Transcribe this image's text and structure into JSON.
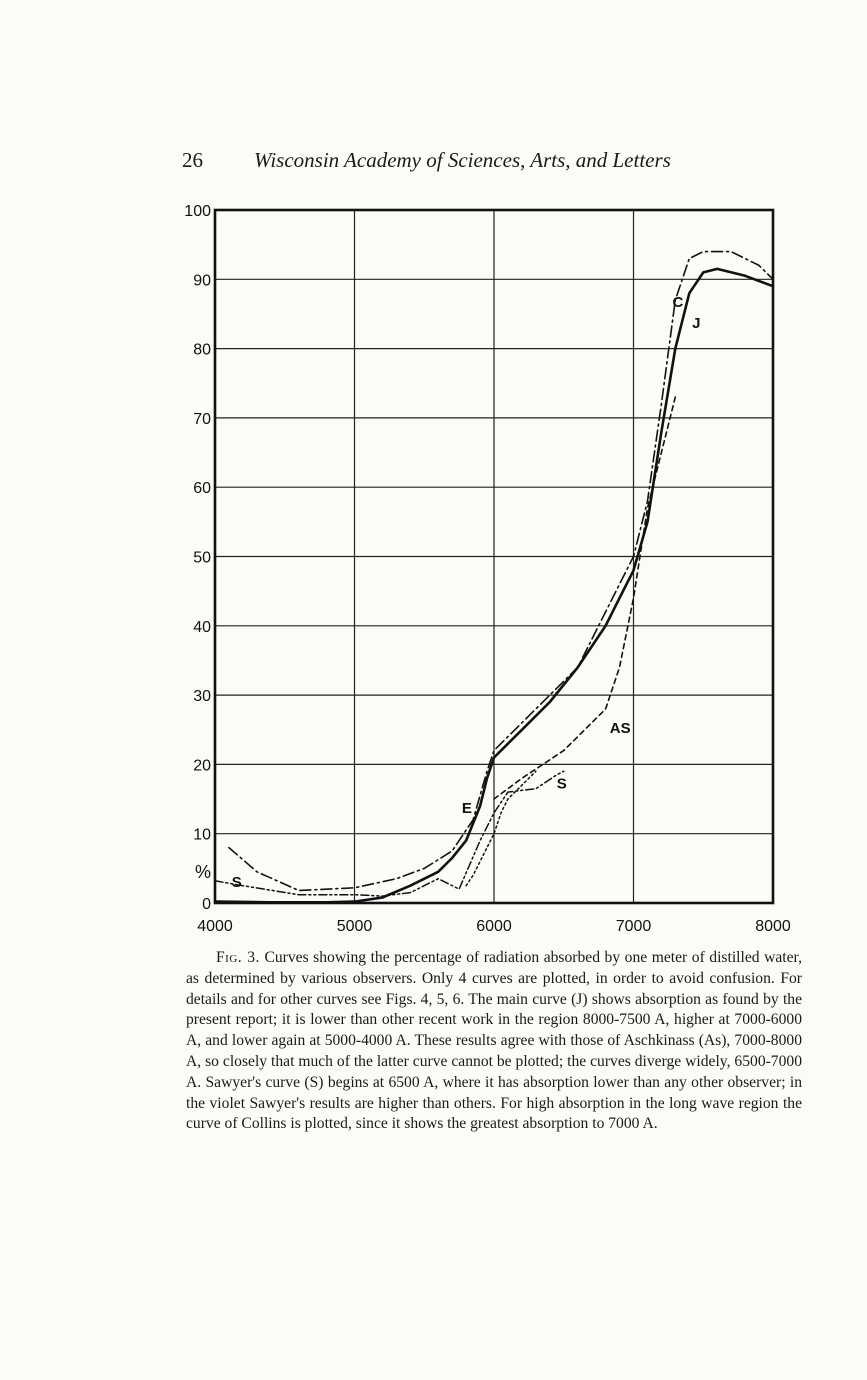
{
  "header": {
    "page_number": "26",
    "running_title": "Wisconsin Academy of Sciences, Arts, and Letters"
  },
  "caption": {
    "label": "Fig. 3.",
    "text": "Curves showing the percentage of radiation absorbed by one meter of distilled water, as determined by various observers. Only 4 curves are plotted, in order to avoid confusion. For details and for other curves see Figs. 4, 5, 6. The main curve (J) shows absorption as found by the present report; it is lower than other recent work in the region 8000-7500 A, higher at 7000-6000 A, and lower again at 5000-4000 A. These results agree with those of Aschkinass (As), 7000-8000 A, so closely that much of the latter curve cannot be plotted; the curves diverge widely, 6500-7000 A. Sawyer's curve (S) begins at 6500 A, where it has absorption lower than any other observer; in the violet Sawyer's results are higher than others. For high absorption in the long wave region the curve of Collins is plotted, since it shows the greatest absorption to 7000 A."
  },
  "chart_data": {
    "type": "line",
    "xlim": [
      4000,
      8000
    ],
    "ylim": [
      0,
      100
    ],
    "x_ticks": [
      "4000",
      "5000",
      "6000",
      "7000",
      "8000"
    ],
    "y_ticks": [
      {
        "value": 0,
        "label": "0"
      },
      {
        "value": 10,
        "label": "10"
      },
      {
        "value": 20,
        "label": "20"
      },
      {
        "value": 30,
        "label": "30"
      },
      {
        "value": 40,
        "label": "40"
      },
      {
        "value": 50,
        "label": "50"
      },
      {
        "value": 60,
        "label": "60"
      },
      {
        "value": 70,
        "label": "70"
      },
      {
        "value": 80,
        "label": "80"
      },
      {
        "value": 90,
        "label": "90"
      },
      {
        "value": 100,
        "label": "100"
      }
    ],
    "unit_label": "%",
    "grid": true,
    "series": [
      {
        "name": "J",
        "style": "solid",
        "x": [
          4000,
          4400,
          4800,
          5000,
          5200,
          5400,
          5600,
          5700,
          5800,
          5900,
          5950,
          6000,
          6200,
          6400,
          6600,
          6800,
          6900,
          7000,
          7100,
          7200,
          7300,
          7400,
          7500,
          7600,
          7800,
          8000
        ],
        "y": [
          0.2,
          0.1,
          0.1,
          0.2,
          0.8,
          2.5,
          4.5,
          6.5,
          9,
          14,
          18,
          21,
          25,
          29,
          34,
          40,
          44,
          48,
          55,
          68,
          80,
          88,
          91,
          91.5,
          90.5,
          89
        ]
      },
      {
        "name": "C",
        "style": "dash-dot",
        "x": [
          4100,
          4300,
          4600,
          5000,
          5300,
          5500,
          5700,
          5850,
          5950,
          6000,
          6200,
          6400,
          6600,
          6800,
          6900,
          7000,
          7100,
          7200,
          7300,
          7400,
          7500,
          7700,
          7900,
          8000
        ],
        "y": [
          8,
          4.5,
          1.8,
          2.2,
          3.5,
          5,
          7.5,
          12,
          19,
          22,
          26,
          30,
          34,
          42,
          46,
          50,
          58,
          72,
          87,
          93,
          94,
          94,
          92,
          90
        ]
      },
      {
        "name": "AS",
        "style": "dashed",
        "x": [
          6000,
          6200,
          6500,
          6800,
          6900,
          7000,
          7100,
          7300
        ],
        "y": [
          15,
          18,
          22,
          28,
          34,
          44,
          57,
          73
        ]
      },
      {
        "name": "S",
        "style": "dashed-dotted",
        "x": [
          4000,
          4200,
          4600,
          5000,
          5200,
          5400,
          5600,
          5750,
          5900,
          6000,
          6100,
          6300,
          6450,
          6500
        ],
        "y": [
          3.2,
          2.5,
          1.2,
          1.2,
          1.0,
          1.5,
          3.5,
          2.0,
          9,
          13,
          16,
          16.5,
          18.5,
          19
        ]
      },
      {
        "name": "E",
        "style": "dotted",
        "x": [
          5800,
          5850,
          5900,
          5950,
          6000,
          6050,
          6100,
          6200,
          6300
        ],
        "y": [
          2.5,
          4,
          6,
          8,
          10,
          13,
          15,
          17,
          19
        ]
      }
    ],
    "series_labels": [
      {
        "text": "C",
        "x": 7280,
        "y": 86
      },
      {
        "text": "J",
        "x": 7420,
        "y": 83
      },
      {
        "text": "AS",
        "x": 6830,
        "y": 24.5
      },
      {
        "text": "S",
        "x": 6450,
        "y": 16.5
      },
      {
        "text": "E",
        "x": 5770,
        "y": 13
      },
      {
        "text": "S",
        "x": 4120,
        "y": 2.3
      }
    ]
  }
}
